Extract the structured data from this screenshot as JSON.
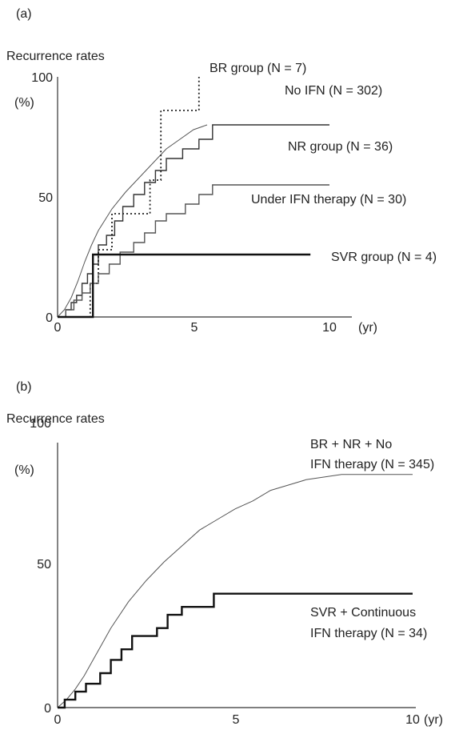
{
  "chart_data": [
    {
      "type": "line",
      "panel_label": "(a)",
      "ylabel": "Recurrence rates",
      "yunit": "(%)",
      "xunit": "(yr)",
      "xlim": [
        0,
        10
      ],
      "ylim": [
        0,
        100
      ],
      "xticks": [
        "0",
        "5",
        "10"
      ],
      "yticks": [
        "0",
        "50",
        "100"
      ],
      "series": [
        {
          "name": "No IFN (N = 302)",
          "style": "thin",
          "color": "#555555",
          "points": [
            [
              0,
              0
            ],
            [
              0.25,
              3
            ],
            [
              0.5,
              8
            ],
            [
              0.75,
              15
            ],
            [
              1,
              23
            ],
            [
              1.25,
              30
            ],
            [
              1.5,
              36
            ],
            [
              2,
              45
            ],
            [
              2.5,
              52
            ],
            [
              3,
              58
            ],
            [
              3.5,
              64
            ],
            [
              4,
              70
            ],
            [
              4.5,
              74
            ],
            [
              5,
              78
            ],
            [
              5.5,
              80
            ]
          ]
        },
        {
          "name": "NR group (N = 36)",
          "style": "step",
          "color": "#333333",
          "points": [
            [
              0,
              0
            ],
            [
              0.3,
              3
            ],
            [
              0.5,
              6
            ],
            [
              0.7,
              9
            ],
            [
              0.9,
              14
            ],
            [
              1.1,
              18
            ],
            [
              1.3,
              22
            ],
            [
              1.5,
              30
            ],
            [
              1.8,
              34
            ],
            [
              2.1,
              40
            ],
            [
              2.4,
              46
            ],
            [
              2.8,
              51
            ],
            [
              3.2,
              56
            ],
            [
              3.6,
              61
            ],
            [
              4,
              66
            ],
            [
              4.6,
              70
            ],
            [
              5.2,
              74
            ],
            [
              5.7,
              80
            ],
            [
              10,
              80
            ]
          ]
        },
        {
          "name": "BR group (N = 7)",
          "style": "dotted",
          "color": "#222222",
          "points": [
            [
              0,
              0
            ],
            [
              1.2,
              0
            ],
            [
              1.2,
              14
            ],
            [
              1.5,
              14
            ],
            [
              1.5,
              28
            ],
            [
              2,
              28
            ],
            [
              2,
              43
            ],
            [
              3.4,
              43
            ],
            [
              3.4,
              57
            ],
            [
              3.8,
              57
            ],
            [
              3.8,
              86
            ],
            [
              5.2,
              86
            ],
            [
              5.2,
              100
            ]
          ]
        },
        {
          "name": "Under IFN therapy (N = 30)",
          "style": "step",
          "color": "#555555",
          "points": [
            [
              0,
              0
            ],
            [
              0.3,
              3
            ],
            [
              0.6,
              7
            ],
            [
              0.9,
              10
            ],
            [
              1.2,
              14
            ],
            [
              1.5,
              18
            ],
            [
              1.9,
              22
            ],
            [
              2.3,
              27
            ],
            [
              2.8,
              31
            ],
            [
              3.2,
              35
            ],
            [
              3.6,
              40
            ],
            [
              4,
              43
            ],
            [
              4.7,
              47
            ],
            [
              5.2,
              51
            ],
            [
              5.7,
              55
            ],
            [
              10,
              55
            ]
          ]
        },
        {
          "name": "SVR group (N = 4)",
          "style": "thick",
          "color": "#111111",
          "points": [
            [
              0,
              0
            ],
            [
              1.3,
              0
            ],
            [
              1.3,
              26
            ],
            [
              9.3,
              26
            ]
          ]
        }
      ]
    },
    {
      "type": "line",
      "panel_label": "(b)",
      "ylabel": "Recurrence rates",
      "yunit": "(%)",
      "xunit": "(yr)",
      "xlim": [
        0,
        10
      ],
      "ylim": [
        0,
        100
      ],
      "xticks": [
        "0",
        "5",
        "10"
      ],
      "yticks": [
        "0",
        "50",
        "100"
      ],
      "series": [
        {
          "name": "BR + NR + No IFN therapy (N = 345)",
          "label_lines": [
            "BR + NR + No",
            "IFN therapy (N = 345)"
          ],
          "style": "thin",
          "color": "#555555",
          "points": [
            [
              0,
              0
            ],
            [
              0.25,
              3
            ],
            [
              0.5,
              7
            ],
            [
              0.75,
              12
            ],
            [
              1,
              18
            ],
            [
              1.25,
              24
            ],
            [
              1.5,
              30
            ],
            [
              2,
              40
            ],
            [
              2.5,
              48
            ],
            [
              3,
              55
            ],
            [
              3.5,
              61
            ],
            [
              4,
              67
            ],
            [
              4.5,
              71
            ],
            [
              5,
              75
            ],
            [
              5.5,
              78
            ],
            [
              6,
              82
            ],
            [
              6.5,
              84
            ],
            [
              7,
              86
            ],
            [
              7.5,
              87
            ],
            [
              8,
              88
            ],
            [
              10,
              88
            ]
          ]
        },
        {
          "name": "SVR + Continuous IFN therapy (N = 34)",
          "label_lines": [
            "SVR + Continuous",
            "IFN therapy (N = 34)"
          ],
          "style": "thick",
          "color": "#111111",
          "points": [
            [
              0,
              0
            ],
            [
              0.2,
              3
            ],
            [
              0.5,
              6
            ],
            [
              0.8,
              9
            ],
            [
              1.2,
              13
            ],
            [
              1.5,
              18
            ],
            [
              1.8,
              22
            ],
            [
              2.1,
              27
            ],
            [
              2.8,
              30
            ],
            [
              3.1,
              35
            ],
            [
              3.5,
              38
            ],
            [
              4.4,
              43
            ],
            [
              10,
              43
            ]
          ]
        }
      ]
    }
  ]
}
